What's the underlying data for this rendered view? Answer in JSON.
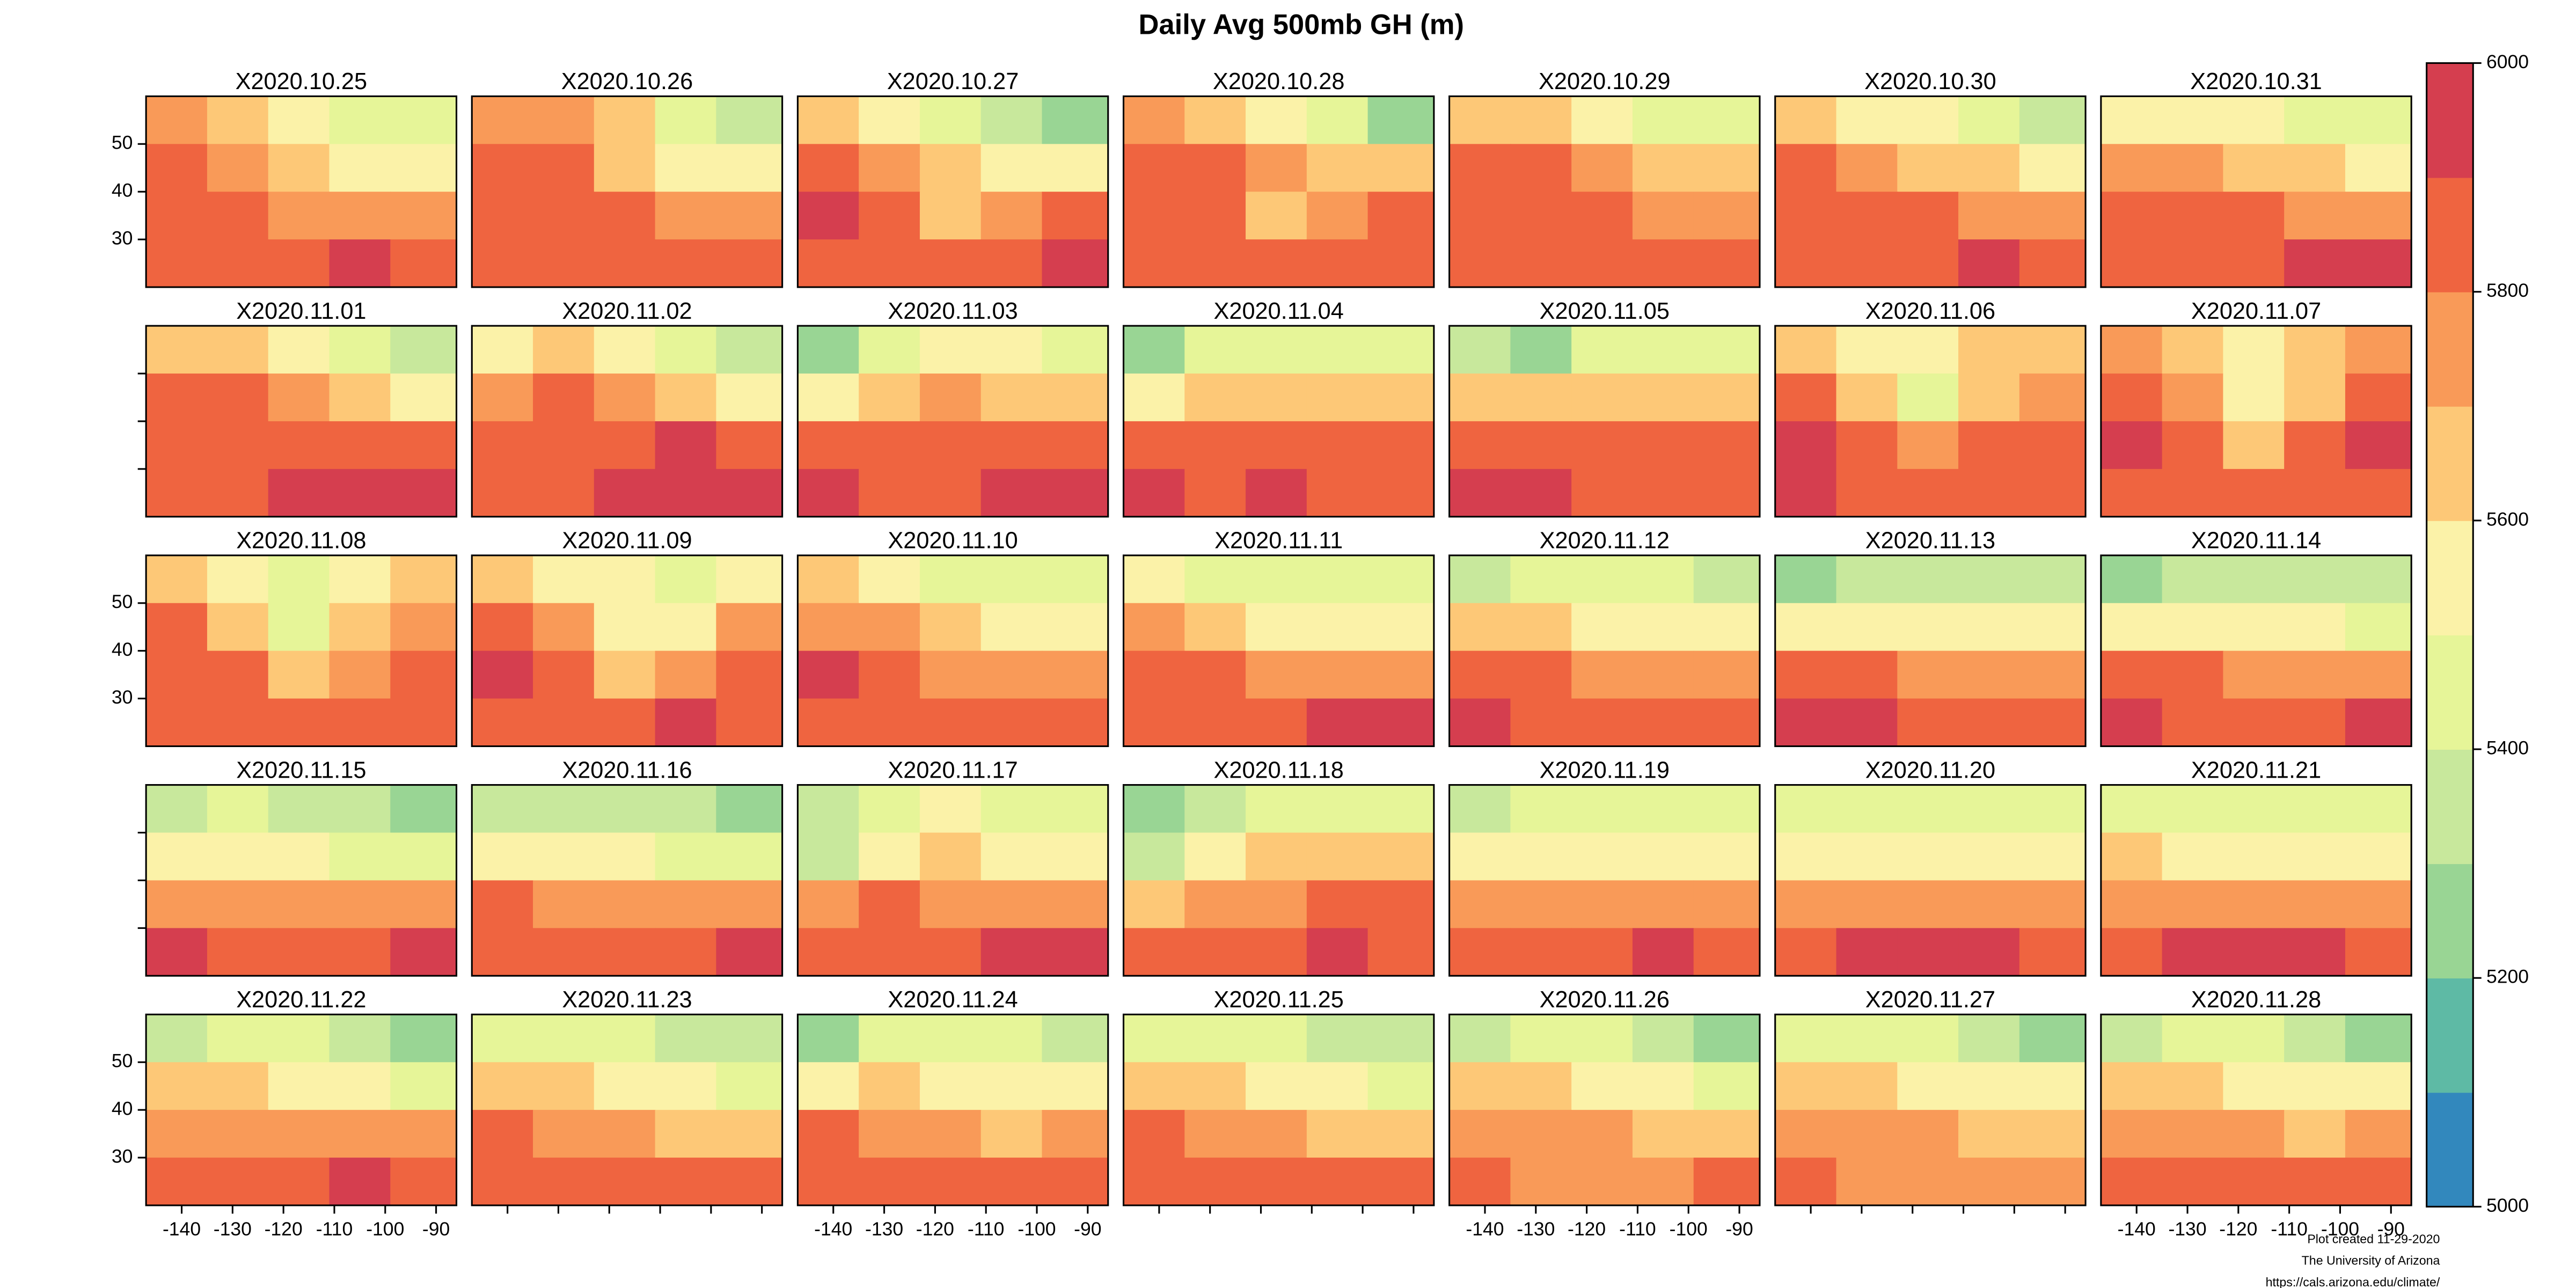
{
  "chart_data": {
    "type": "heatmap",
    "title": "Daily Avg 500mb GH (m)",
    "lats": [
      55,
      45,
      35,
      25
    ],
    "lons": [
      -141,
      -129,
      -117,
      -105,
      -93
    ],
    "xlim": [
      -147,
      -86
    ],
    "ylim": [
      20,
      60
    ],
    "xticks": [
      -140,
      -130,
      -120,
      -110,
      -100,
      -90
    ],
    "yticks": [
      30,
      40,
      50
    ],
    "zlim": [
      5000,
      6000
    ],
    "zticks": [
      5000,
      5200,
      5400,
      5600,
      5800,
      6000
    ],
    "colors": [
      "#3288bd",
      "#5ebaa5",
      "#99d594",
      "#c8e89c",
      "#e6f598",
      "#fbf2a8",
      "#fdc877",
      "#f99a58",
      "#ef6440",
      "#d53e4f"
    ],
    "footer": [
      "Plot created 11-29-2020",
      "The University of Arizona",
      "https://cals.arizona.edu/climate/"
    ],
    "panels": [
      {
        "title": "X2020.10.25",
        "values": [
          [
            5750,
            5650,
            5550,
            5450,
            5400
          ],
          [
            5850,
            5750,
            5600,
            5550,
            5550
          ],
          [
            5850,
            5850,
            5750,
            5700,
            5750
          ],
          [
            5850,
            5850,
            5880,
            5950,
            5850
          ]
        ]
      },
      {
        "title": "X2020.10.26",
        "values": [
          [
            5750,
            5700,
            5600,
            5400,
            5300
          ],
          [
            5850,
            5800,
            5650,
            5550,
            5550
          ],
          [
            5850,
            5850,
            5800,
            5700,
            5750
          ],
          [
            5850,
            5850,
            5850,
            5850,
            5850
          ]
        ]
      },
      {
        "title": "X2020.10.27",
        "values": [
          [
            5600,
            5500,
            5400,
            5350,
            5250
          ],
          [
            5850,
            5700,
            5600,
            5550,
            5550
          ],
          [
            5950,
            5800,
            5600,
            5700,
            5800
          ],
          [
            5850,
            5850,
            5800,
            5850,
            5950
          ]
        ]
      },
      {
        "title": "X2020.10.28",
        "values": [
          [
            5700,
            5650,
            5550,
            5400,
            5200
          ],
          [
            5850,
            5800,
            5700,
            5650,
            5600
          ],
          [
            5850,
            5850,
            5650,
            5700,
            5800
          ],
          [
            5850,
            5850,
            5850,
            5850,
            5850
          ]
        ]
      },
      {
        "title": "X2020.10.29",
        "values": [
          [
            5650,
            5600,
            5500,
            5450,
            5400
          ],
          [
            5800,
            5800,
            5700,
            5650,
            5600
          ],
          [
            5850,
            5850,
            5800,
            5750,
            5700
          ],
          [
            5850,
            5850,
            5850,
            5850,
            5850
          ]
        ]
      },
      {
        "title": "X2020.10.30",
        "values": [
          [
            5650,
            5550,
            5500,
            5450,
            5350
          ],
          [
            5800,
            5700,
            5650,
            5600,
            5550
          ],
          [
            5850,
            5850,
            5800,
            5750,
            5750
          ],
          [
            5850,
            5850,
            5850,
            5950,
            5850
          ]
        ]
      },
      {
        "title": "X2020.10.31",
        "values": [
          [
            5550,
            5500,
            5500,
            5450,
            5400
          ],
          [
            5750,
            5700,
            5650,
            5600,
            5550
          ],
          [
            5850,
            5850,
            5800,
            5750,
            5750
          ],
          [
            5850,
            5850,
            5850,
            5950,
            5950
          ]
        ]
      },
      {
        "title": "X2020.11.01",
        "values": [
          [
            5650,
            5600,
            5550,
            5400,
            5300
          ],
          [
            5800,
            5800,
            5750,
            5650,
            5550
          ],
          [
            5850,
            5850,
            5850,
            5850,
            5800
          ],
          [
            5850,
            5850,
            5950,
            5950,
            5950
          ]
        ]
      },
      {
        "title": "X2020.11.02",
        "values": [
          [
            5550,
            5600,
            5550,
            5450,
            5300
          ],
          [
            5750,
            5800,
            5750,
            5650,
            5550
          ],
          [
            5850,
            5850,
            5850,
            5950,
            5850
          ],
          [
            5850,
            5850,
            5950,
            5950,
            5950
          ]
        ]
      },
      {
        "title": "X2020.11.03",
        "values": [
          [
            5250,
            5450,
            5550,
            5500,
            5400
          ],
          [
            5550,
            5650,
            5700,
            5650,
            5600
          ],
          [
            5850,
            5850,
            5850,
            5850,
            5800
          ],
          [
            5950,
            5850,
            5850,
            5950,
            5950
          ]
        ]
      },
      {
        "title": "X2020.11.04",
        "values": [
          [
            5250,
            5400,
            5450,
            5450,
            5400
          ],
          [
            5550,
            5650,
            5650,
            5650,
            5600
          ],
          [
            5800,
            5850,
            5850,
            5850,
            5850
          ],
          [
            5950,
            5850,
            5950,
            5850,
            5850
          ]
        ]
      },
      {
        "title": "X2020.11.05",
        "values": [
          [
            5350,
            5250,
            5450,
            5450,
            5400
          ],
          [
            5650,
            5600,
            5650,
            5650,
            5600
          ],
          [
            5850,
            5850,
            5850,
            5850,
            5850
          ],
          [
            5950,
            5950,
            5850,
            5850,
            5850
          ]
        ]
      },
      {
        "title": "X2020.11.06",
        "values": [
          [
            5650,
            5550,
            5550,
            5600,
            5600
          ],
          [
            5800,
            5650,
            5450,
            5650,
            5750
          ],
          [
            5950,
            5850,
            5750,
            5850,
            5850
          ],
          [
            5950,
            5850,
            5850,
            5850,
            5850
          ]
        ]
      },
      {
        "title": "X2020.11.07",
        "values": [
          [
            5750,
            5650,
            5550,
            5650,
            5700
          ],
          [
            5850,
            5750,
            5500,
            5650,
            5800
          ],
          [
            5950,
            5850,
            5650,
            5850,
            5950
          ],
          [
            5850,
            5850,
            5850,
            5850,
            5850
          ]
        ]
      },
      {
        "title": "X2020.11.08",
        "values": [
          [
            5650,
            5550,
            5450,
            5550,
            5600
          ],
          [
            5800,
            5650,
            5450,
            5650,
            5700
          ],
          [
            5850,
            5800,
            5650,
            5750,
            5800
          ],
          [
            5850,
            5850,
            5850,
            5850,
            5850
          ]
        ]
      },
      {
        "title": "X2020.11.09",
        "values": [
          [
            5650,
            5550,
            5500,
            5450,
            5550
          ],
          [
            5850,
            5700,
            5500,
            5550,
            5700
          ],
          [
            5950,
            5800,
            5650,
            5750,
            5800
          ],
          [
            5850,
            5850,
            5850,
            5900,
            5850
          ]
        ]
      },
      {
        "title": "X2020.11.10",
        "values": [
          [
            5600,
            5500,
            5450,
            5450,
            5450
          ],
          [
            5750,
            5700,
            5600,
            5550,
            5550
          ],
          [
            5950,
            5850,
            5750,
            5700,
            5700
          ],
          [
            5850,
            5850,
            5850,
            5850,
            5850
          ]
        ]
      },
      {
        "title": "X2020.11.11",
        "values": [
          [
            5550,
            5450,
            5450,
            5400,
            5400
          ],
          [
            5700,
            5650,
            5550,
            5500,
            5500
          ],
          [
            5850,
            5800,
            5750,
            5700,
            5700
          ],
          [
            5850,
            5850,
            5850,
            5900,
            5950
          ]
        ]
      },
      {
        "title": "X2020.11.12",
        "values": [
          [
            5350,
            5400,
            5400,
            5400,
            5350
          ],
          [
            5600,
            5600,
            5550,
            5550,
            5500
          ],
          [
            5850,
            5800,
            5750,
            5700,
            5700
          ],
          [
            5950,
            5850,
            5850,
            5850,
            5850
          ]
        ]
      },
      {
        "title": "X2020.11.13",
        "values": [
          [
            5250,
            5300,
            5350,
            5350,
            5350
          ],
          [
            5550,
            5550,
            5500,
            5500,
            5500
          ],
          [
            5800,
            5800,
            5750,
            5700,
            5700
          ],
          [
            5950,
            5950,
            5850,
            5850,
            5850
          ]
        ]
      },
      {
        "title": "X2020.11.14",
        "values": [
          [
            5250,
            5300,
            5350,
            5350,
            5300
          ],
          [
            5500,
            5550,
            5550,
            5500,
            5450
          ],
          [
            5800,
            5800,
            5750,
            5750,
            5700
          ],
          [
            5950,
            5850,
            5850,
            5850,
            5950
          ]
        ]
      },
      {
        "title": "X2020.11.15",
        "values": [
          [
            5350,
            5400,
            5350,
            5300,
            5250
          ],
          [
            5500,
            5550,
            5500,
            5450,
            5450
          ],
          [
            5750,
            5750,
            5700,
            5700,
            5700
          ],
          [
            5900,
            5850,
            5850,
            5850,
            5950
          ]
        ]
      },
      {
        "title": "X2020.11.16",
        "values": [
          [
            5300,
            5350,
            5350,
            5300,
            5250
          ],
          [
            5550,
            5550,
            5500,
            5450,
            5450
          ],
          [
            5800,
            5750,
            5700,
            5700,
            5750
          ],
          [
            5850,
            5850,
            5850,
            5850,
            5950
          ]
        ]
      },
      {
        "title": "X2020.11.17",
        "values": [
          [
            5300,
            5400,
            5500,
            5450,
            5400
          ],
          [
            5350,
            5550,
            5600,
            5550,
            5550
          ],
          [
            5700,
            5800,
            5700,
            5700,
            5750
          ],
          [
            5850,
            5850,
            5850,
            5950,
            5950
          ]
        ]
      },
      {
        "title": "X2020.11.18",
        "values": [
          [
            5200,
            5350,
            5450,
            5450,
            5450
          ],
          [
            5350,
            5550,
            5600,
            5600,
            5600
          ],
          [
            5650,
            5750,
            5750,
            5800,
            5800
          ],
          [
            5850,
            5850,
            5850,
            5950,
            5850
          ]
        ]
      },
      {
        "title": "X2020.11.19",
        "values": [
          [
            5300,
            5450,
            5450,
            5400,
            5400
          ],
          [
            5550,
            5550,
            5550,
            5500,
            5500
          ],
          [
            5750,
            5750,
            5750,
            5750,
            5750
          ],
          [
            5850,
            5850,
            5850,
            5950,
            5850
          ]
        ]
      },
      {
        "title": "X2020.11.20",
        "values": [
          [
            5450,
            5450,
            5450,
            5400,
            5400
          ],
          [
            5550,
            5550,
            5550,
            5500,
            5500
          ],
          [
            5700,
            5750,
            5750,
            5750,
            5750
          ],
          [
            5850,
            5950,
            5950,
            5950,
            5850
          ]
        ]
      },
      {
        "title": "X2020.11.21",
        "values": [
          [
            5450,
            5450,
            5450,
            5450,
            5400
          ],
          [
            5600,
            5550,
            5550,
            5550,
            5500
          ],
          [
            5750,
            5750,
            5750,
            5750,
            5750
          ],
          [
            5850,
            5950,
            5950,
            5950,
            5850
          ]
        ]
      },
      {
        "title": "X2020.11.22",
        "values": [
          [
            5350,
            5450,
            5400,
            5350,
            5250
          ],
          [
            5600,
            5600,
            5550,
            5500,
            5450
          ],
          [
            5750,
            5750,
            5750,
            5750,
            5700
          ],
          [
            5850,
            5850,
            5850,
            5950,
            5850
          ]
        ]
      },
      {
        "title": "X2020.11.23",
        "values": [
          [
            5400,
            5450,
            5400,
            5350,
            5300
          ],
          [
            5600,
            5600,
            5550,
            5500,
            5450
          ],
          [
            5800,
            5750,
            5700,
            5650,
            5650
          ],
          [
            5850,
            5850,
            5800,
            5800,
            5850
          ]
        ]
      },
      {
        "title": "X2020.11.24",
        "values": [
          [
            5250,
            5450,
            5450,
            5400,
            5350
          ],
          [
            5550,
            5600,
            5550,
            5550,
            5500
          ],
          [
            5800,
            5750,
            5700,
            5650,
            5700
          ],
          [
            5850,
            5850,
            5850,
            5850,
            5850
          ]
        ]
      },
      {
        "title": "X2020.11.25",
        "values": [
          [
            5450,
            5400,
            5400,
            5350,
            5300
          ],
          [
            5650,
            5600,
            5550,
            5500,
            5450
          ],
          [
            5800,
            5750,
            5700,
            5650,
            5650
          ],
          [
            5850,
            5800,
            5800,
            5800,
            5800
          ]
        ]
      },
      {
        "title": "X2020.11.26",
        "values": [
          [
            5350,
            5400,
            5400,
            5300,
            5250
          ],
          [
            5600,
            5600,
            5550,
            5500,
            5450
          ],
          [
            5750,
            5750,
            5700,
            5650,
            5650
          ],
          [
            5850,
            5750,
            5750,
            5750,
            5800
          ]
        ]
      },
      {
        "title": "X2020.11.27",
        "values": [
          [
            5400,
            5450,
            5450,
            5350,
            5250
          ],
          [
            5600,
            5600,
            5550,
            5550,
            5500
          ],
          [
            5750,
            5750,
            5700,
            5650,
            5650
          ],
          [
            5800,
            5750,
            5750,
            5750,
            5750
          ]
        ]
      },
      {
        "title": "X2020.11.28",
        "values": [
          [
            5350,
            5450,
            5400,
            5350,
            5250
          ],
          [
            5600,
            5600,
            5550,
            5500,
            5500
          ],
          [
            5750,
            5750,
            5700,
            5650,
            5700
          ],
          [
            5850,
            5850,
            5800,
            5800,
            5850
          ]
        ]
      }
    ]
  }
}
